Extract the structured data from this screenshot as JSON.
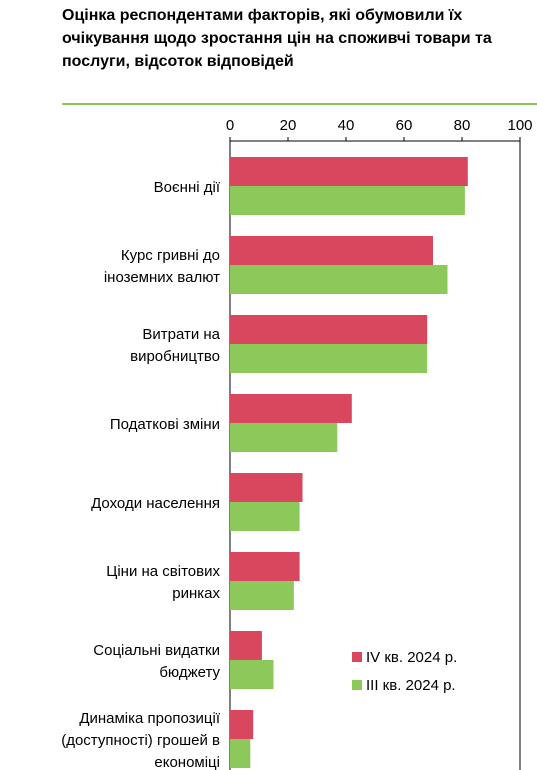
{
  "chart_data": {
    "type": "hbar",
    "title": "Оцінка респондентами факторів, які обумовили їх очікування щодо зростання  цін на споживчі товари та послуги, відсоток відповідей",
    "categories": [
      "Воєнні дії",
      "Курс гривні до\nіноземних валют",
      "Витрати на\nвиробництво",
      "Податкові зміни",
      "Доходи населення",
      "Ціни на світових\nринках",
      "Соціальні видатки\nбюджету",
      "Динаміка пропозиції\n(доступності) грошей в\nекономіці"
    ],
    "series": [
      {
        "name": "IV кв. 2024 р.",
        "color": "#d9475f",
        "values": [
          82,
          70,
          68,
          42,
          25,
          24,
          11,
          8
        ]
      },
      {
        "name": "III кв. 2024 р.",
        "color": "#8cc85a",
        "values": [
          81,
          75,
          68,
          37,
          24,
          22,
          15,
          7
        ]
      }
    ],
    "xlim": [
      0,
      100
    ],
    "xticks": [
      0,
      20,
      40,
      60,
      80,
      100
    ]
  }
}
